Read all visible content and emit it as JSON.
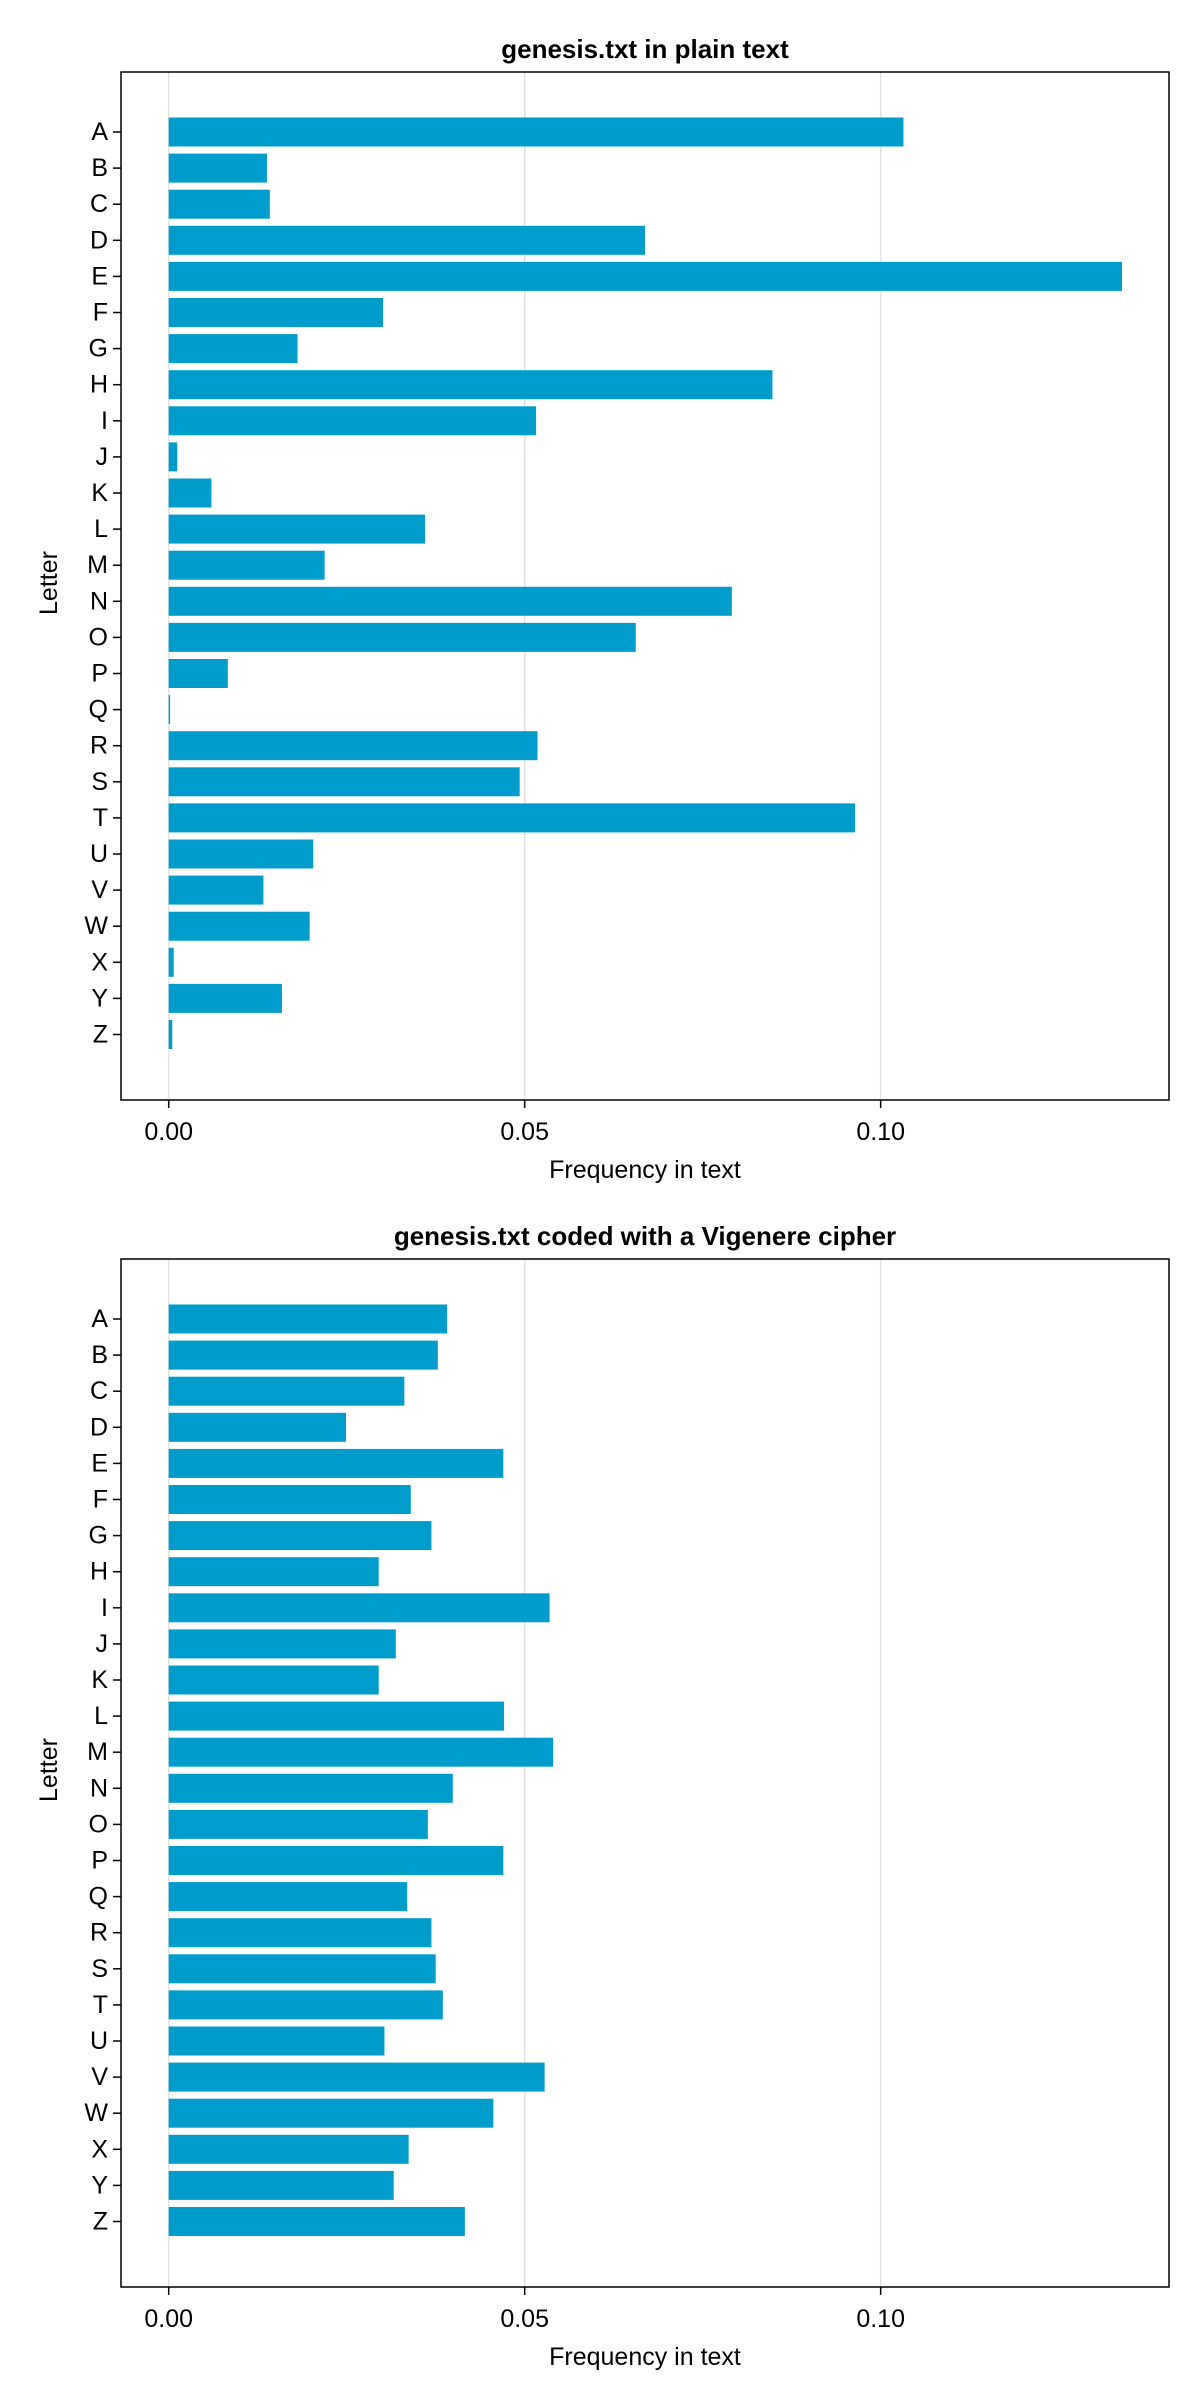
{
  "chart_data": [
    {
      "type": "bar",
      "orientation": "horizontal",
      "title": "genesis.txt in plain text",
      "xlabel": "Frequency in text",
      "ylabel": "Letter",
      "xlim": [
        -0.0067,
        0.1405
      ],
      "xticks": [
        0.0,
        0.05,
        0.1
      ],
      "xtick_labels": [
        "0.00",
        "0.05",
        "0.10"
      ],
      "grid": true,
      "color": "#009ccc",
      "categories": [
        "A",
        "B",
        "C",
        "D",
        "E",
        "F",
        "G",
        "H",
        "I",
        "J",
        "K",
        "L",
        "M",
        "N",
        "O",
        "P",
        "Q",
        "R",
        "S",
        "T",
        "U",
        "V",
        "W",
        "X",
        "Y",
        "Z"
      ],
      "values": [
        0.1032,
        0.0138,
        0.0142,
        0.0669,
        0.1339,
        0.0301,
        0.0181,
        0.0848,
        0.0516,
        0.0012,
        0.006,
        0.036,
        0.0219,
        0.0791,
        0.0656,
        0.0083,
        0.0002,
        0.0518,
        0.0493,
        0.0964,
        0.0203,
        0.0133,
        0.0198,
        0.0007,
        0.0159,
        0.0005
      ]
    },
    {
      "type": "bar",
      "orientation": "horizontal",
      "title": "genesis.txt coded with a Vigenere cipher",
      "xlabel": "Frequency in text",
      "ylabel": "Letter",
      "xlim": [
        -0.0067,
        0.1405
      ],
      "xticks": [
        0.0,
        0.05,
        0.1
      ],
      "xtick_labels": [
        "0.00",
        "0.05",
        "0.10"
      ],
      "grid": true,
      "color": "#009ccc",
      "categories": [
        "A",
        "B",
        "C",
        "D",
        "E",
        "F",
        "G",
        "H",
        "I",
        "J",
        "K",
        "L",
        "M",
        "N",
        "O",
        "P",
        "Q",
        "R",
        "S",
        "T",
        "U",
        "V",
        "W",
        "X",
        "Y",
        "Z"
      ],
      "values": [
        0.0391,
        0.0378,
        0.0331,
        0.0249,
        0.047,
        0.034,
        0.0369,
        0.0295,
        0.0535,
        0.0319,
        0.0295,
        0.0471,
        0.054,
        0.0399,
        0.0364,
        0.047,
        0.0335,
        0.0369,
        0.0375,
        0.0385,
        0.0303,
        0.0528,
        0.0456,
        0.0337,
        0.0316,
        0.0416
      ]
    }
  ]
}
